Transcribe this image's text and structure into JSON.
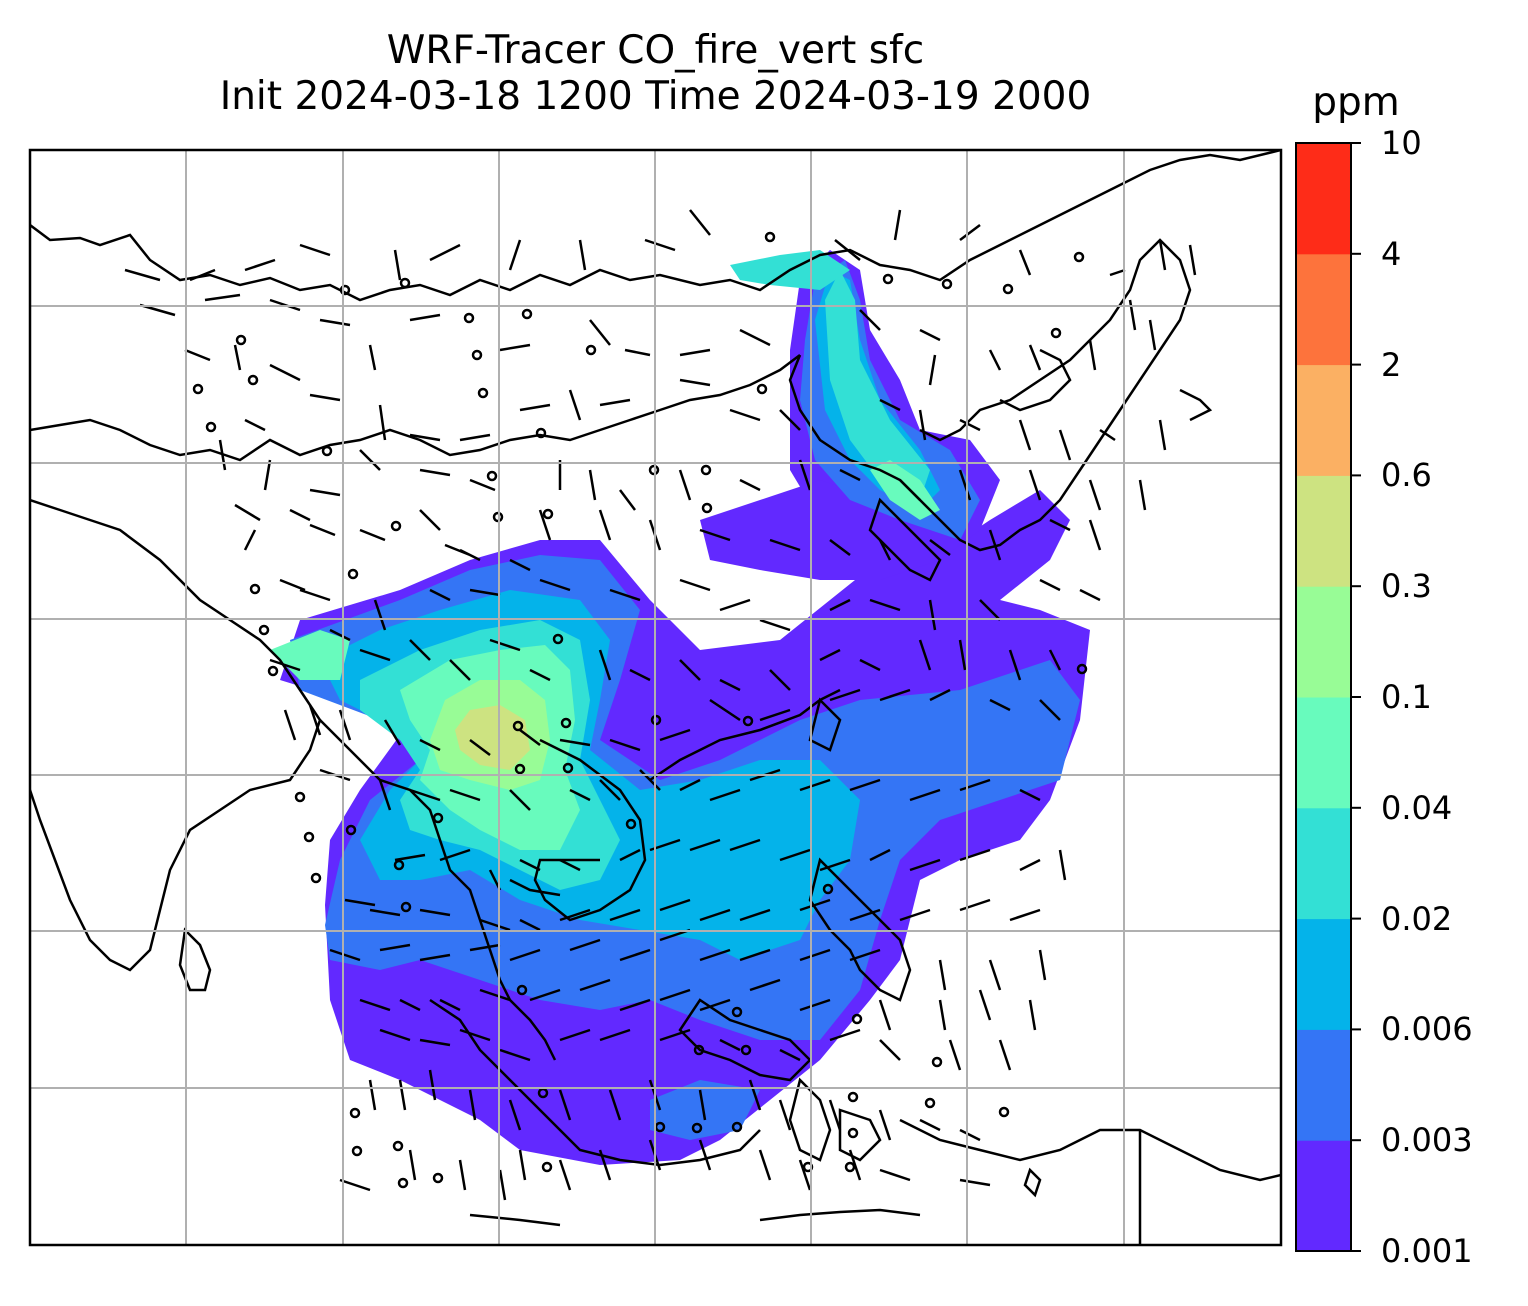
{
  "title": {
    "line1": "WRF-Tracer CO_fire_vert sfc",
    "line2": "Init 2024-03-18 1200 Time 2024-03-19 2000"
  },
  "colorbar": {
    "label": "ppm",
    "levels": [
      "0.001",
      "0.003",
      "0.006",
      "0.02",
      "0.04",
      "0.1",
      "0.3",
      "0.6",
      "2",
      "4",
      "10"
    ],
    "colors": [
      "#6229ff",
      "#3475f5",
      "#04b3ea",
      "#33e0d5",
      "#68fbbd",
      "#98fc96",
      "#cde381",
      "#fbb063",
      "#fd733c",
      "#fe2c18"
    ]
  },
  "map": {
    "variable": "CO_fire_vert",
    "units": "ppm",
    "gridlines": true,
    "coastline_color": "#000000",
    "wind_barbs": true
  }
}
